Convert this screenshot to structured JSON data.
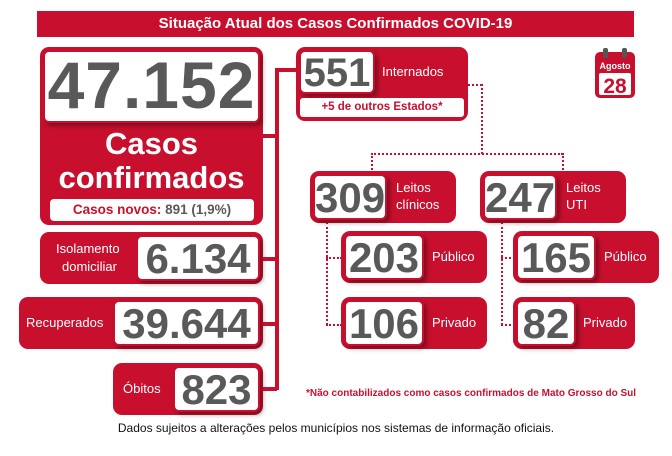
{
  "title": "Situação Atual dos Casos Confirmados COVID-19",
  "confirmados": {
    "valor": "47.152",
    "label_1": "Casos",
    "label_2": "confirmados",
    "novos_label": "Casos novos:",
    "novos_valor": "891 (1,9%)"
  },
  "isolamento": {
    "label_1": "Isolamento",
    "label_2": "domiciliar",
    "valor": "6.134"
  },
  "recuperados": {
    "label": "Recuperados",
    "valor": "39.644"
  },
  "obitos": {
    "label": "Óbitos",
    "valor": "823"
  },
  "internados": {
    "valor": "551",
    "label": "Internados",
    "outros_estados": "+5 de outros Estados*"
  },
  "leitos_clinicos": {
    "valor": "309",
    "label_1": "Leitos",
    "label_2": "clínicos",
    "publico": {
      "valor": "203",
      "label": "Público"
    },
    "privado": {
      "valor": "106",
      "label": "Privado"
    }
  },
  "leitos_uti": {
    "valor": "247",
    "label_1": "Leitos",
    "label_2": "UTI",
    "publico": {
      "valor": "165",
      "label": "Público"
    },
    "privado": {
      "valor": "82",
      "label": "Privado"
    }
  },
  "calendario": {
    "mes": "Agosto",
    "dia": "28"
  },
  "nota": "*Não contabilizados como casos confirmados de Mato Grosso do Sul",
  "rodape": "Dados sujeitos a alterações pelos municípios nos sistemas de informação oficiais.",
  "colors": {
    "accent": "#c8102e",
    "number": "#595959"
  }
}
